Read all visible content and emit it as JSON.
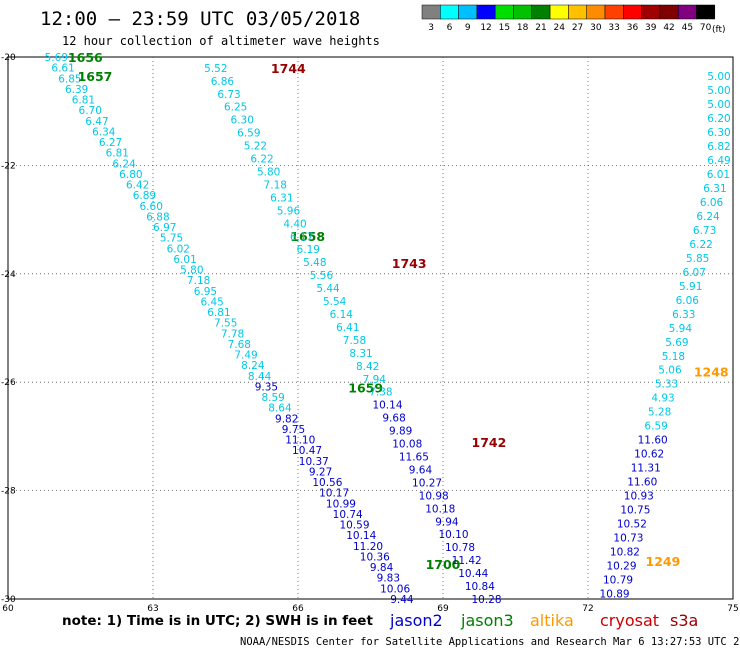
{
  "header": {
    "title": "12:00 — 23:59 UTC 03/05/2018",
    "subtitle": "12 hour collection of altimeter wave heights"
  },
  "colorbar": {
    "unit_label": "(ft)",
    "levels": [
      {
        "label": "3",
        "color": "#808080"
      },
      {
        "label": "6",
        "color": "#00ffff"
      },
      {
        "label": "9",
        "color": "#00bfff"
      },
      {
        "label": "12",
        "color": "#0000ff"
      },
      {
        "label": "15",
        "color": "#00e000"
      },
      {
        "label": "18",
        "color": "#00c000"
      },
      {
        "label": "21",
        "color": "#008000"
      },
      {
        "label": "24",
        "color": "#ffff00"
      },
      {
        "label": "27",
        "color": "#ffc000"
      },
      {
        "label": "30",
        "color": "#ff8c00"
      },
      {
        "label": "33",
        "color": "#ff4000"
      },
      {
        "label": "36",
        "color": "#ff0000"
      },
      {
        "label": "39",
        "color": "#a00000"
      },
      {
        "label": "42",
        "color": "#800000"
      },
      {
        "label": "45",
        "color": "#800080"
      },
      {
        "label": "70",
        "color": "#000000"
      }
    ]
  },
  "footer": {
    "note": "note: 1) Time is in UTC; 2) SWH is in feet",
    "credit": "NOAA/NESDIS Center for Satellite Applications and Research   Mar  6 13:27:53 UTC 2018",
    "satellites": [
      {
        "name": "jason2",
        "color": "#0000cc"
      },
      {
        "name": "jason3",
        "color": "#008000"
      },
      {
        "name": "altika",
        "color": "#ff9900"
      },
      {
        "name": "cryosat",
        "color": "#cc0000"
      },
      {
        "name": "s3a",
        "color": "#990000"
      }
    ]
  },
  "chart_data": {
    "type": "scatter",
    "xlim": [
      60,
      75
    ],
    "ylim": [
      -30,
      -20
    ],
    "xticks": [
      "60",
      "63",
      "66",
      "69",
      "72",
      "75"
    ],
    "yticks": [
      "-20",
      "-22",
      "-24",
      "-26",
      "-28",
      "-30"
    ],
    "grid": true,
    "grid_style": "dotted",
    "value_colors": {
      "low": "#00c8e8",
      "mid": "#0000cc"
    },
    "color_threshold": 9,
    "tracks": [
      {
        "satellite": "jason3",
        "start": [
          61.0,
          -20.0
        ],
        "end": [
          68.15,
          -30.0
        ],
        "labels": [
          {
            "text": "1656",
            "lon": 61.6,
            "lat": -20.0
          },
          {
            "text": "1657",
            "lon": 61.8,
            "lat": -20.35
          },
          {
            "text": "1658",
            "lon": 66.2,
            "lat": -23.3
          },
          {
            "text": "1659",
            "lon": 67.4,
            "lat": -26.1
          },
          {
            "text": "1700",
            "lon": 69.0,
            "lat": -29.35
          }
        ],
        "values": [
          5.69,
          6.61,
          6.85,
          6.39,
          6.81,
          6.7,
          6.47,
          6.34,
          6.27,
          6.81,
          6.24,
          6.8,
          6.42,
          6.89,
          6.6,
          6.88,
          6.97,
          5.75,
          6.02,
          6.01,
          5.8,
          7.18,
          6.95,
          6.45,
          6.81,
          7.55,
          7.78,
          7.68,
          7.49,
          8.24,
          8.44,
          9.35,
          8.59,
          8.64,
          9.82,
          9.75,
          11.1,
          10.47,
          10.37,
          9.27,
          10.56,
          10.17,
          10.99,
          10.74,
          10.59,
          10.14,
          11.2,
          10.36,
          9.84,
          9.83,
          10.06,
          9.44
        ]
      },
      {
        "satellite": "s3a",
        "start": [
          64.3,
          -20.2
        ],
        "end": [
          69.9,
          -30.0
        ],
        "labels": [
          {
            "text": "1744",
            "lon": 65.8,
            "lat": -20.2
          },
          {
            "text": "1743",
            "lon": 68.3,
            "lat": -23.8
          },
          {
            "text": "1742",
            "lon": 69.95,
            "lat": -27.1
          }
        ],
        "values": [
          5.52,
          6.86,
          6.73,
          6.25,
          6.3,
          6.59,
          5.22,
          6.22,
          5.8,
          7.18,
          6.31,
          5.96,
          4.4,
          6.17,
          6.19,
          5.48,
          5.56,
          5.44,
          5.54,
          6.14,
          6.41,
          7.58,
          8.31,
          8.42,
          7.94,
          7.38,
          10.14,
          9.68,
          9.89,
          10.08,
          11.65,
          9.64,
          10.27,
          10.98,
          10.18,
          9.94,
          10.1,
          10.78,
          11.42,
          10.44,
          10.84,
          10.28
        ]
      },
      {
        "satellite": "altika",
        "start": [
          75.2,
          -20.35
        ],
        "end": [
          72.55,
          -29.9
        ],
        "labels": [
          {
            "text": "1248",
            "lon": 74.55,
            "lat": -25.8
          },
          {
            "text": "1249",
            "lon": 73.55,
            "lat": -29.3
          }
        ],
        "values": [
          5.0,
          5.0,
          5.0,
          6.2,
          6.3,
          6.82,
          6.49,
          6.01,
          6.31,
          6.06,
          6.24,
          6.73,
          6.22,
          5.85,
          6.07,
          5.91,
          6.06,
          6.33,
          5.94,
          5.69,
          5.18,
          5.06,
          5.33,
          4.93,
          5.28,
          6.59,
          11.6,
          10.62,
          11.31,
          11.6,
          10.93,
          10.75,
          10.52,
          10.73,
          10.82,
          10.29,
          10.79,
          10.89
        ]
      }
    ]
  }
}
